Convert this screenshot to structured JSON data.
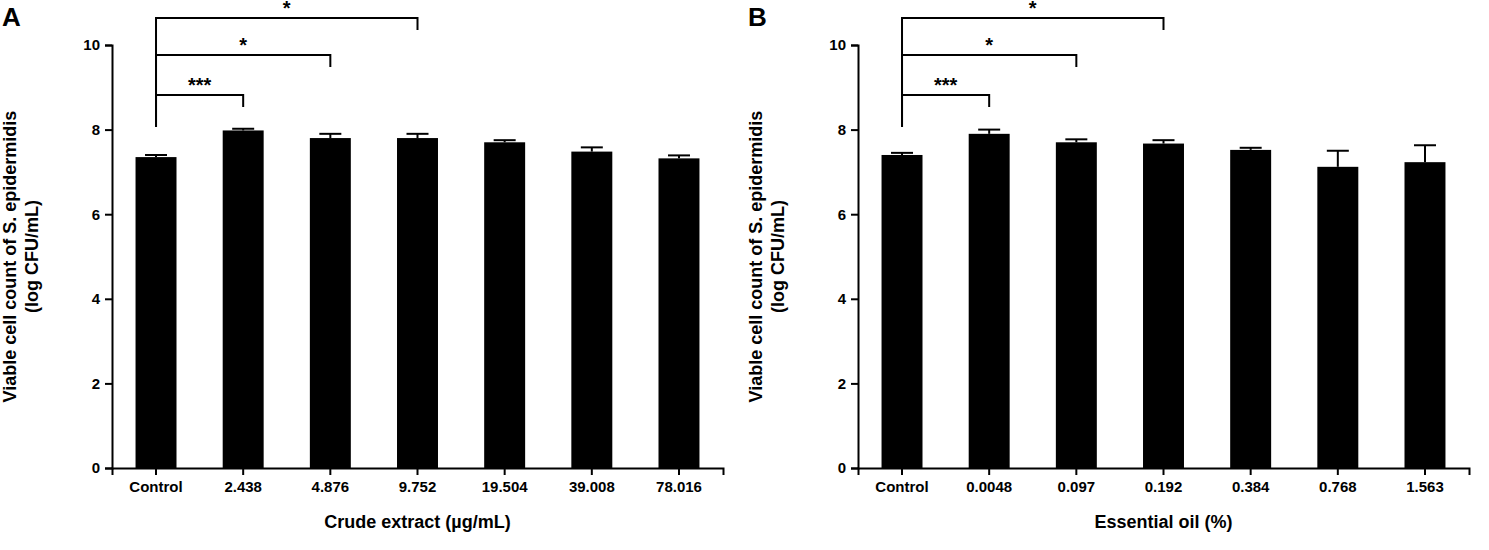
{
  "chart_data": [
    {
      "type": "bar",
      "title": "A",
      "y_label": [
        "Viable cell count of S. epidermidis",
        "(log CFU/mL)"
      ],
      "x_label": "Crude extract (µg/mL)",
      "categories": [
        "Control",
        "2.438",
        "4.876",
        "9.752",
        "19.504",
        "39.008",
        "78.016"
      ],
      "values": [
        7.35,
        7.98,
        7.8,
        7.8,
        7.7,
        7.48,
        7.32
      ],
      "errors": [
        0.05,
        0.04,
        0.1,
        0.1,
        0.05,
        0.1,
        0.07
      ],
      "color": "#000000",
      "ylim": [
        0,
        10
      ],
      "yticks": [
        0,
        2,
        4,
        6,
        8,
        10
      ],
      "annotations": [
        {
          "start": "Control",
          "end": "2.438",
          "text": "***"
        },
        {
          "start": "Control",
          "end": "4.876",
          "text": "*"
        },
        {
          "start": "Control",
          "end": "9.752",
          "text": "*"
        }
      ]
    },
    {
      "type": "bar",
      "title": "B",
      "y_label": [
        "Viable cell count of S. epidermidis",
        "(log CFU/mL)"
      ],
      "x_label": "Essential oil (%)",
      "categories": [
        "Control",
        "0.0048",
        "0.097",
        "0.192",
        "0.384",
        "0.768",
        "1.563"
      ],
      "values": [
        7.4,
        7.9,
        7.7,
        7.67,
        7.52,
        7.12,
        7.23
      ],
      "errors": [
        0.05,
        0.1,
        0.07,
        0.08,
        0.05,
        0.38,
        0.4
      ],
      "color": "#000000",
      "ylim": [
        0,
        10
      ],
      "yticks": [
        0,
        2,
        4,
        6,
        8,
        10
      ],
      "annotations": [
        {
          "start": "Control",
          "end": "0.0048",
          "text": "***"
        },
        {
          "start": "Control",
          "end": "0.097",
          "text": "*"
        },
        {
          "start": "Control",
          "end": "0.192",
          "text": "*"
        }
      ]
    }
  ]
}
